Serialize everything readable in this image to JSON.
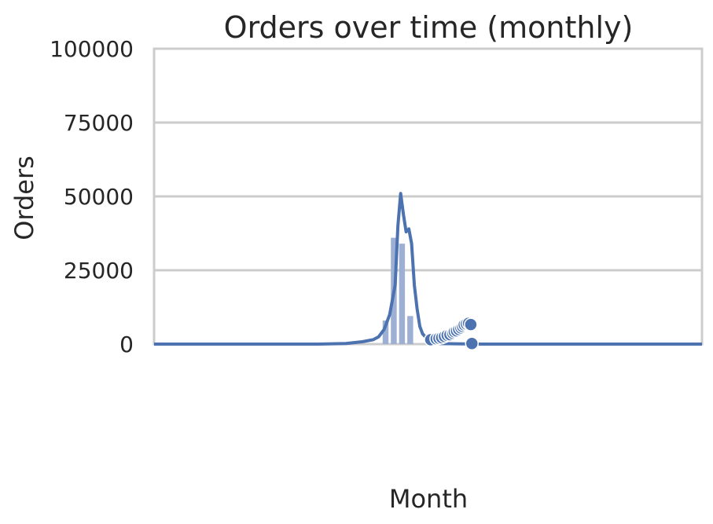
{
  "chart_data": {
    "type": "bar",
    "title": "Orders over time (monthly)",
    "xlabel": "Month",
    "ylabel": "Orders",
    "ylim": [
      0,
      100000
    ],
    "yticks": [
      0,
      25000,
      50000,
      75000,
      100000
    ],
    "grid": true,
    "legend": "none",
    "style": {
      "accent": "#4c72b0",
      "bar_color": "#9db0d4",
      "grid_color": "#cccccc",
      "text_color": "#262626"
    },
    "categories": [
      "",
      "",
      "",
      "",
      "",
      "",
      "",
      "",
      "",
      "",
      "",
      "",
      "",
      "",
      "",
      ""
    ],
    "x_tick_labels": [
      "",
      "",
      "",
      "",
      "",
      "",
      "",
      "",
      "",
      "",
      "",
      "",
      "",
      "",
      "",
      "",
      "",
      "",
      "",
      "",
      "",
      "",
      "",
      ""
    ],
    "histogram": {
      "bins": [
        0.415,
        0.43,
        0.445,
        0.46,
        0.475,
        0.49,
        0.505,
        0.52
      ],
      "values": [
        8000,
        36000,
        34000,
        9500,
        0,
        0,
        0
      ]
    },
    "series": [
      {
        "type": "line",
        "x": [
          0.0,
          0.3,
          0.35,
          0.38,
          0.4,
          0.41,
          0.42,
          0.43,
          0.44,
          0.445,
          0.45,
          0.455,
          0.46,
          0.465,
          0.47,
          0.475,
          0.48,
          0.485,
          0.49,
          0.5,
          0.51,
          0.52,
          0.55,
          0.6,
          1.0
        ],
        "values": [
          0,
          0,
          200,
          800,
          1500,
          2500,
          5000,
          10000,
          20000,
          40000,
          51000,
          44000,
          38000,
          39000,
          34000,
          20000,
          12000,
          6000,
          3500,
          1500,
          600,
          200,
          100,
          0,
          0
        ]
      },
      {
        "type": "scatter",
        "x": [
          0.505,
          0.515,
          0.52,
          0.525,
          0.53,
          0.535,
          0.54,
          0.545,
          0.548,
          0.552,
          0.556,
          0.56,
          0.563,
          0.566,
          0.57,
          0.574,
          0.578,
          0.58
        ],
        "values": [
          1500,
          1800,
          2000,
          2200,
          2600,
          3000,
          3200,
          3700,
          4200,
          4500,
          5000,
          5500,
          6000,
          6500,
          6800,
          7000,
          6600,
          200
        ]
      }
    ]
  }
}
